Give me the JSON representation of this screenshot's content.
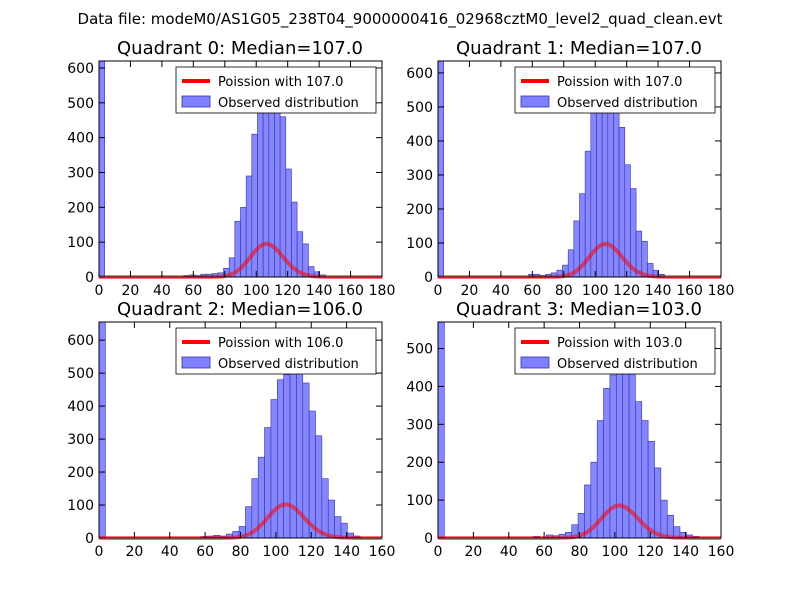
{
  "figure": {
    "suptitle": "Data file: modeM0/AS1G05_238T04_9000000416_02968cztM0_level2_quad_clean.evt",
    "background": "#ffffff"
  },
  "colors": {
    "histogram_fill": "#8080ff",
    "histogram_edge": "#3333aa",
    "poisson_line": "#ff0000"
  },
  "chart_data": [
    {
      "type": "bar",
      "title": "Quadrant 0: Median=107.0",
      "xlim": [
        0,
        180
      ],
      "ylim": [
        0,
        620
      ],
      "xticks": [
        0,
        20,
        40,
        60,
        80,
        100,
        120,
        140,
        160,
        180
      ],
      "yticks": [
        0,
        100,
        200,
        300,
        400,
        500,
        600
      ],
      "bin_width": 3.6,
      "legend_position": "top-right",
      "legend": [
        "Poission with 107.0",
        "Observed distribution"
      ],
      "poisson_mean": 107.0,
      "poisson_scale": 2475,
      "histogram": [
        {
          "x": 0,
          "count": 620
        },
        {
          "x": 54,
          "count": 4
        },
        {
          "x": 57.6,
          "count": 6
        },
        {
          "x": 61.2,
          "count": 4
        },
        {
          "x": 64.8,
          "count": 8
        },
        {
          "x": 68.4,
          "count": 8
        },
        {
          "x": 72,
          "count": 10
        },
        {
          "x": 75.6,
          "count": 12
        },
        {
          "x": 79.2,
          "count": 25
        },
        {
          "x": 82.8,
          "count": 55
        },
        {
          "x": 86.4,
          "count": 160
        },
        {
          "x": 90,
          "count": 200
        },
        {
          "x": 93.6,
          "count": 290
        },
        {
          "x": 97.2,
          "count": 410
        },
        {
          "x": 100.8,
          "count": 490
        },
        {
          "x": 104.4,
          "count": 590
        },
        {
          "x": 108,
          "count": 540
        },
        {
          "x": 111.6,
          "count": 600
        },
        {
          "x": 115.2,
          "count": 460
        },
        {
          "x": 118.8,
          "count": 310
        },
        {
          "x": 122.4,
          "count": 215
        },
        {
          "x": 126,
          "count": 130
        },
        {
          "x": 129.6,
          "count": 95
        },
        {
          "x": 133.2,
          "count": 30
        },
        {
          "x": 136.8,
          "count": 15
        },
        {
          "x": 140.4,
          "count": 6
        }
      ]
    },
    {
      "type": "bar",
      "title": "Quadrant 1: Median=107.0",
      "xlim": [
        0,
        180
      ],
      "ylim": [
        0,
        635
      ],
      "xticks": [
        0,
        20,
        40,
        60,
        80,
        100,
        120,
        140,
        160,
        180
      ],
      "yticks": [
        0,
        100,
        200,
        300,
        400,
        500,
        600
      ],
      "bin_width": 3.6,
      "legend_position": "top-right",
      "legend": [
        "Poission with 107.0",
        "Observed distribution"
      ],
      "poisson_mean": 107.0,
      "poisson_scale": 2530,
      "histogram": [
        {
          "x": 0,
          "count": 635
        },
        {
          "x": 57.6,
          "count": 8
        },
        {
          "x": 61.2,
          "count": 8
        },
        {
          "x": 64.8,
          "count": 4
        },
        {
          "x": 68.4,
          "count": 8
        },
        {
          "x": 72,
          "count": 12
        },
        {
          "x": 75.6,
          "count": 20
        },
        {
          "x": 79.2,
          "count": 35
        },
        {
          "x": 82.8,
          "count": 80
        },
        {
          "x": 86.4,
          "count": 165
        },
        {
          "x": 90,
          "count": 245
        },
        {
          "x": 93.6,
          "count": 370
        },
        {
          "x": 97.2,
          "count": 490
        },
        {
          "x": 100.8,
          "count": 570
        },
        {
          "x": 104.4,
          "count": 510
        },
        {
          "x": 108,
          "count": 560
        },
        {
          "x": 111.6,
          "count": 600
        },
        {
          "x": 115.2,
          "count": 440
        },
        {
          "x": 118.8,
          "count": 330
        },
        {
          "x": 122.4,
          "count": 260
        },
        {
          "x": 126,
          "count": 135
        },
        {
          "x": 129.6,
          "count": 105
        },
        {
          "x": 133.2,
          "count": 40
        },
        {
          "x": 136.8,
          "count": 20
        },
        {
          "x": 140.4,
          "count": 8
        }
      ]
    },
    {
      "type": "bar",
      "title": "Quadrant 2: Median=106.0",
      "xlim": [
        0,
        160
      ],
      "ylim": [
        0,
        655
      ],
      "xticks": [
        0,
        20,
        40,
        60,
        80,
        100,
        120,
        140,
        160
      ],
      "yticks": [
        0,
        100,
        200,
        300,
        400,
        500,
        600
      ],
      "bin_width": 3.6,
      "legend_position": "top-right",
      "legend": [
        "Poission with 106.0",
        "Observed distribution"
      ],
      "poisson_mean": 106.0,
      "poisson_scale": 2630,
      "histogram": [
        {
          "x": 0,
          "count": 655
        },
        {
          "x": 57.6,
          "count": 4
        },
        {
          "x": 61.2,
          "count": 6
        },
        {
          "x": 64.8,
          "count": 8
        },
        {
          "x": 68.4,
          "count": 6
        },
        {
          "x": 72,
          "count": 12
        },
        {
          "x": 75.6,
          "count": 20
        },
        {
          "x": 79.2,
          "count": 35
        },
        {
          "x": 82.8,
          "count": 95
        },
        {
          "x": 86.4,
          "count": 180
        },
        {
          "x": 90,
          "count": 245
        },
        {
          "x": 93.6,
          "count": 335
        },
        {
          "x": 97.2,
          "count": 420
        },
        {
          "x": 100.8,
          "count": 480
        },
        {
          "x": 104.4,
          "count": 495
        },
        {
          "x": 108,
          "count": 500
        },
        {
          "x": 111.6,
          "count": 595
        },
        {
          "x": 115.2,
          "count": 470
        },
        {
          "x": 118.8,
          "count": 385
        },
        {
          "x": 122.4,
          "count": 310
        },
        {
          "x": 126,
          "count": 180
        },
        {
          "x": 129.6,
          "count": 115
        },
        {
          "x": 133.2,
          "count": 65
        },
        {
          "x": 136.8,
          "count": 45
        },
        {
          "x": 140.4,
          "count": 15
        },
        {
          "x": 144,
          "count": 6
        }
      ]
    },
    {
      "type": "bar",
      "title": "Quadrant 3: Median=103.0",
      "xlim": [
        0,
        160
      ],
      "ylim": [
        0,
        570
      ],
      "xticks": [
        0,
        20,
        40,
        60,
        80,
        100,
        120,
        140,
        160
      ],
      "yticks": [
        0,
        100,
        200,
        300,
        400,
        500
      ],
      "bin_width": 3.6,
      "legend_position": "top-right",
      "legend": [
        "Poission with 103.0",
        "Observed distribution"
      ],
      "poisson_mean": 103.0,
      "poisson_scale": 2190,
      "histogram": [
        {
          "x": 0,
          "count": 570
        },
        {
          "x": 54,
          "count": 4
        },
        {
          "x": 61.2,
          "count": 8
        },
        {
          "x": 64.8,
          "count": 6
        },
        {
          "x": 68.4,
          "count": 10
        },
        {
          "x": 72,
          "count": 15
        },
        {
          "x": 75.6,
          "count": 35
        },
        {
          "x": 79.2,
          "count": 65
        },
        {
          "x": 82.8,
          "count": 140
        },
        {
          "x": 86.4,
          "count": 200
        },
        {
          "x": 90,
          "count": 310
        },
        {
          "x": 93.6,
          "count": 395
        },
        {
          "x": 97.2,
          "count": 430
        },
        {
          "x": 100.8,
          "count": 520
        },
        {
          "x": 104.4,
          "count": 510
        },
        {
          "x": 108,
          "count": 470
        },
        {
          "x": 111.6,
          "count": 360
        },
        {
          "x": 115.2,
          "count": 310
        },
        {
          "x": 118.8,
          "count": 255
        },
        {
          "x": 122.4,
          "count": 185
        },
        {
          "x": 126,
          "count": 100
        },
        {
          "x": 129.6,
          "count": 60
        },
        {
          "x": 133.2,
          "count": 30
        },
        {
          "x": 136.8,
          "count": 15
        },
        {
          "x": 140.4,
          "count": 8
        },
        {
          "x": 144,
          "count": 4
        }
      ]
    }
  ]
}
